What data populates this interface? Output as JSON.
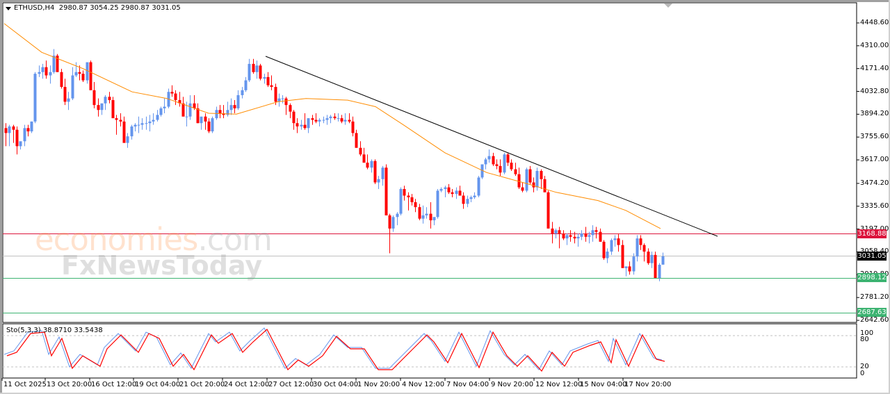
{
  "header": {
    "symbol": "ETHUSD,H4",
    "ohlc": "2980.87 3054.25 2980.87 3031.05",
    "title_line": "ETHUSD,H4  2980.87 3054.25 2980.87 3031.05"
  },
  "indicator": {
    "label": "Sto(5,3,3) 38.8710 33.5438",
    "levels": [
      "100",
      "80",
      "20",
      "0"
    ]
  },
  "watermark": {
    "line1_main": "economies",
    "line1_suffix": ".com",
    "line2": "FxNewsToday"
  },
  "price_axis": [
    "4448.60",
    "4310.00",
    "4171.40",
    "4032.80",
    "3894.20",
    "3755.60",
    "3617.00",
    "3474.20",
    "3335.60",
    "3197.00",
    "3058.40",
    "2919.80",
    "2781.20",
    "2642.60"
  ],
  "price_tags": {
    "resistance": {
      "value": "3168.88",
      "color": "#dc143c"
    },
    "current": {
      "value": "3031.05",
      "color": "#000000"
    },
    "support1": {
      "value": "2898.12",
      "color": "#3cb371"
    },
    "support2": {
      "value": "2687.63",
      "color": "#3cb371"
    }
  },
  "time_axis": [
    "11 Oct 2025",
    "13 Oct 20:00",
    "16 Oct 12:00",
    "19 Oct 04:00",
    "21 Oct 20:00",
    "24 Oct 12:00",
    "27 Oct 12:00",
    "30 Oct 04:00",
    "1 Nov 20:00",
    "4 Nov 12:00",
    "7 Nov 04:00",
    "9 Nov 20:00",
    "12 Nov 12:00",
    "15 Nov 04:00",
    "17 Nov 20:00"
  ],
  "colors": {
    "bull": "#6495ed",
    "bear": "#ff0000",
    "ma": "#ff8c00",
    "trendline": "#000000",
    "resistance": "#dc143c",
    "support": "#3cb371",
    "current": "#c0c0c0",
    "sto_main": "#6495ed",
    "sto_signal": "#ff0000"
  },
  "chart_data": {
    "type": "candlestick",
    "title": "ETHUSD,H4",
    "ylim": [
      2642.6,
      4448.6
    ],
    "yticks": [
      4448.6,
      4310.0,
      4171.4,
      4032.8,
      3894.2,
      3755.6,
      3617.0,
      3474.2,
      3335.6,
      3197.0,
      3058.4,
      2919.8,
      2781.2,
      2642.6
    ],
    "xticks": [
      "11 Oct 2025",
      "13 Oct 20:00",
      "16 Oct 12:00",
      "19 Oct 04:00",
      "21 Oct 20:00",
      "24 Oct 12:00",
      "27 Oct 12:00",
      "30 Oct 04:00",
      "1 Nov 20:00",
      "4 Nov 12:00",
      "7 Nov 04:00",
      "9 Nov 20:00",
      "12 Nov 12:00",
      "15 Nov 04:00",
      "17 Nov 20:00"
    ],
    "last_bar": {
      "open": 2980.87,
      "high": 3054.25,
      "low": 2980.87,
      "close": 3031.05
    },
    "horizontal_lines": [
      {
        "name": "resistance",
        "value": 3168.88
      },
      {
        "name": "current",
        "value": 3031.05
      },
      {
        "name": "support",
        "value": 2898.12
      },
      {
        "name": "support",
        "value": 2687.63
      }
    ],
    "trendline": {
      "from": {
        "x": "27 Oct 00:00",
        "y": 4230
      },
      "to": {
        "x": "~20 Nov",
        "y": 3165
      }
    },
    "moving_average_approx": [
      [
        6,
        4445
      ],
      [
        60,
        4270
      ],
      [
        120,
        4170
      ],
      [
        190,
        4030
      ],
      [
        240,
        3990
      ],
      [
        300,
        3900
      ],
      [
        340,
        3895
      ],
      [
        400,
        3970
      ],
      [
        440,
        3990
      ],
      [
        500,
        3980
      ],
      [
        540,
        3940
      ],
      [
        580,
        3830
      ],
      [
        640,
        3660
      ],
      [
        700,
        3540
      ],
      [
        760,
        3470
      ],
      [
        800,
        3420
      ],
      [
        860,
        3370
      ],
      [
        900,
        3310
      ],
      [
        950,
        3200
      ]
    ],
    "candles_note": "OHLC arrays in 'candles' as [open,high,low,close], estimated from pixels",
    "candles": [
      [
        3810,
        3840,
        3700,
        3780
      ],
      [
        3780,
        3830,
        3700,
        3820
      ],
      [
        3820,
        3830,
        3720,
        3800
      ],
      [
        3800,
        3820,
        3650,
        3700
      ],
      [
        3700,
        3720,
        3680,
        3730
      ],
      [
        3730,
        3830,
        3700,
        3810
      ],
      [
        3810,
        3830,
        3760,
        3790
      ],
      [
        3790,
        3850,
        3780,
        3850
      ],
      [
        3850,
        4150,
        3840,
        4140
      ],
      [
        4140,
        4190,
        4120,
        4150
      ],
      [
        4150,
        4200,
        4110,
        4180
      ],
      [
        4180,
        4220,
        4110,
        4130
      ],
      [
        4130,
        4190,
        4080,
        4150
      ],
      [
        4150,
        4290,
        4140,
        4250
      ],
      [
        4250,
        4260,
        4160,
        4150
      ],
      [
        4150,
        4170,
        4050,
        4060
      ],
      [
        4060,
        4110,
        3950,
        3970
      ],
      [
        3970,
        4030,
        3920,
        3990
      ],
      [
        3990,
        4180,
        3980,
        4130
      ],
      [
        4130,
        4210,
        4120,
        4150
      ],
      [
        4150,
        4190,
        4100,
        4140
      ],
      [
        4140,
        4160,
        4090,
        4100
      ],
      [
        4100,
        4200,
        4080,
        4210
      ],
      [
        4210,
        4220,
        4050,
        4040
      ],
      [
        4040,
        4090,
        3930,
        3950
      ],
      [
        3950,
        3990,
        3880,
        3920
      ],
      [
        3920,
        3960,
        3890,
        3960
      ],
      [
        3960,
        4010,
        3920,
        4000
      ],
      [
        4000,
        4030,
        3960,
        3980
      ],
      [
        3980,
        4000,
        3880,
        3870
      ],
      [
        3870,
        3890,
        3770,
        3860
      ],
      [
        3860,
        3900,
        3820,
        3850
      ],
      [
        3850,
        3880,
        3750,
        3720
      ],
      [
        3720,
        3780,
        3690,
        3760
      ],
      [
        3760,
        3830,
        3740,
        3820
      ],
      [
        3820,
        3840,
        3790,
        3830
      ],
      [
        3830,
        3880,
        3780,
        3830
      ],
      [
        3830,
        3870,
        3800,
        3840
      ],
      [
        3840,
        3880,
        3800,
        3840
      ],
      [
        3840,
        3890,
        3790,
        3850
      ],
      [
        3850,
        3900,
        3830,
        3860
      ],
      [
        3860,
        3920,
        3850,
        3890
      ],
      [
        3890,
        3940,
        3880,
        3930
      ],
      [
        3930,
        3990,
        3900,
        3940
      ],
      [
        3940,
        4050,
        3930,
        4030
      ],
      [
        4030,
        4070,
        4000,
        4020
      ],
      [
        4020,
        4040,
        3950,
        3980
      ],
      [
        3980,
        4030,
        3940,
        3960
      ],
      [
        3960,
        4000,
        3920,
        3880
      ],
      [
        3880,
        3970,
        3820,
        3880
      ],
      [
        3880,
        4010,
        3860,
        3960
      ],
      [
        3960,
        4010,
        3920,
        3930
      ],
      [
        3930,
        3960,
        3840,
        3840
      ],
      [
        3840,
        3870,
        3800,
        3880
      ],
      [
        3880,
        3900,
        3800,
        3850
      ],
      [
        3850,
        3870,
        3780,
        3790
      ],
      [
        3790,
        3880,
        3780,
        3870
      ],
      [
        3870,
        3940,
        3860,
        3920
      ],
      [
        3920,
        3950,
        3870,
        3900
      ],
      [
        3900,
        3950,
        3870,
        3890
      ],
      [
        3890,
        3970,
        3880,
        3920
      ],
      [
        3920,
        3990,
        3890,
        3950
      ],
      [
        3950,
        3980,
        3900,
        3930
      ],
      [
        3930,
        4040,
        3920,
        4010
      ],
      [
        4010,
        4060,
        3990,
        4040
      ],
      [
        4040,
        4120,
        4030,
        4100
      ],
      [
        4100,
        4230,
        4090,
        4200
      ],
      [
        4200,
        4230,
        4140,
        4150
      ],
      [
        4150,
        4220,
        4110,
        4190
      ],
      [
        4190,
        4200,
        4100,
        4110
      ],
      [
        4110,
        4140,
        4080,
        4120
      ],
      [
        4120,
        4150,
        4060,
        4070
      ],
      [
        4070,
        4130,
        4040,
        4060
      ],
      [
        4060,
        4080,
        3950,
        3970
      ],
      [
        3970,
        4020,
        3940,
        3990
      ],
      [
        3990,
        4010,
        3960,
        3990
      ],
      [
        3990,
        4000,
        3890,
        3950
      ],
      [
        3950,
        3960,
        3870,
        3910
      ],
      [
        3910,
        3920,
        3800,
        3840
      ],
      [
        3840,
        3870,
        3780,
        3820
      ],
      [
        3820,
        3860,
        3800,
        3830
      ],
      [
        3830,
        3900,
        3800,
        3810
      ],
      [
        3810,
        3870,
        3780,
        3870
      ],
      [
        3870,
        3890,
        3830,
        3860
      ],
      [
        3860,
        3900,
        3840,
        3850
      ],
      [
        3850,
        3870,
        3820,
        3860
      ],
      [
        3860,
        3880,
        3840,
        3860
      ],
      [
        3860,
        3890,
        3830,
        3870
      ],
      [
        3870,
        3890,
        3840,
        3880
      ],
      [
        3880,
        3900,
        3860,
        3870
      ],
      [
        3870,
        3900,
        3850,
        3870
      ],
      [
        3870,
        3890,
        3840,
        3850
      ],
      [
        3850,
        3900,
        3830,
        3860
      ],
      [
        3860,
        3900,
        3840,
        3850
      ],
      [
        3850,
        3880,
        3760,
        3780
      ],
      [
        3780,
        3800,
        3700,
        3690
      ],
      [
        3690,
        3730,
        3640,
        3650
      ],
      [
        3650,
        3690,
        3600,
        3600
      ],
      [
        3600,
        3650,
        3560,
        3570
      ],
      [
        3570,
        3620,
        3540,
        3610
      ],
      [
        3610,
        3620,
        3470,
        3480
      ],
      [
        3480,
        3520,
        3440,
        3500
      ],
      [
        3500,
        3580,
        3460,
        3570
      ],
      [
        3570,
        3590,
        3280,
        3280
      ],
      [
        3280,
        3290,
        3050,
        3200
      ],
      [
        3200,
        3280,
        3180,
        3270
      ],
      [
        3270,
        3300,
        3220,
        3290
      ],
      [
        3290,
        3450,
        3280,
        3440
      ],
      [
        3440,
        3460,
        3370,
        3400
      ],
      [
        3400,
        3420,
        3310,
        3390
      ],
      [
        3390,
        3410,
        3340,
        3360
      ],
      [
        3360,
        3380,
        3300,
        3330
      ],
      [
        3330,
        3350,
        3250,
        3260
      ],
      [
        3260,
        3340,
        3230,
        3280
      ],
      [
        3280,
        3330,
        3260,
        3290
      ],
      [
        3290,
        3360,
        3200,
        3250
      ],
      [
        3250,
        3270,
        3220,
        3270
      ],
      [
        3270,
        3440,
        3260,
        3430
      ],
      [
        3430,
        3450,
        3420,
        3440
      ],
      [
        3440,
        3460,
        3390,
        3450
      ],
      [
        3450,
        3470,
        3410,
        3420
      ],
      [
        3420,
        3440,
        3390,
        3410
      ],
      [
        3410,
        3450,
        3380,
        3430
      ],
      [
        3430,
        3460,
        3400,
        3400
      ],
      [
        3400,
        3420,
        3320,
        3350
      ],
      [
        3350,
        3400,
        3330,
        3380
      ],
      [
        3380,
        3400,
        3360,
        3390
      ],
      [
        3390,
        3420,
        3380,
        3400
      ],
      [
        3400,
        3520,
        3390,
        3510
      ],
      [
        3510,
        3580,
        3500,
        3590
      ],
      [
        3590,
        3630,
        3560,
        3620
      ],
      [
        3620,
        3680,
        3600,
        3640
      ],
      [
        3640,
        3660,
        3580,
        3590
      ],
      [
        3590,
        3620,
        3560,
        3580
      ],
      [
        3580,
        3620,
        3520,
        3540
      ],
      [
        3540,
        3660,
        3530,
        3650
      ],
      [
        3650,
        3660,
        3580,
        3600
      ],
      [
        3600,
        3620,
        3550,
        3560
      ],
      [
        3560,
        3600,
        3520,
        3530
      ],
      [
        3530,
        3570,
        3440,
        3450
      ],
      [
        3450,
        3480,
        3420,
        3430
      ],
      [
        3430,
        3570,
        3420,
        3560
      ],
      [
        3560,
        3580,
        3470,
        3480
      ],
      [
        3480,
        3510,
        3420,
        3450
      ],
      [
        3450,
        3570,
        3430,
        3550
      ],
      [
        3550,
        3560,
        3440,
        3500
      ],
      [
        3500,
        3520,
        3440,
        3420
      ],
      [
        3420,
        3430,
        3210,
        3200
      ],
      [
        3200,
        3240,
        3110,
        3170
      ],
      [
        3170,
        3200,
        3140,
        3190
      ],
      [
        3190,
        3210,
        3080,
        3170
      ],
      [
        3170,
        3190,
        3130,
        3140
      ],
      [
        3140,
        3170,
        3100,
        3160
      ],
      [
        3160,
        3190,
        3120,
        3150
      ],
      [
        3150,
        3180,
        3110,
        3140
      ],
      [
        3140,
        3170,
        3090,
        3150
      ],
      [
        3150,
        3190,
        3130,
        3170
      ],
      [
        3170,
        3210,
        3120,
        3150
      ],
      [
        3150,
        3180,
        3110,
        3160
      ],
      [
        3160,
        3220,
        3120,
        3190
      ],
      [
        3190,
        3210,
        3140,
        3180
      ],
      [
        3180,
        3200,
        3120,
        3120
      ],
      [
        3120,
        3130,
        3010,
        3020
      ],
      [
        3020,
        3080,
        2990,
        3060
      ],
      [
        3060,
        3140,
        3040,
        3130
      ],
      [
        3130,
        3160,
        3090,
        3140
      ],
      [
        3140,
        3170,
        3060,
        3100
      ],
      [
        3100,
        3130,
        2990,
        2960
      ],
      [
        2960,
        2970,
        2910,
        2970
      ],
      [
        2970,
        3000,
        2920,
        2940
      ],
      [
        2940,
        3050,
        2920,
        3030
      ],
      [
        3030,
        3160,
        3000,
        3140
      ],
      [
        3140,
        3160,
        3070,
        3100
      ],
      [
        3100,
        3110,
        3000,
        3060
      ],
      [
        3060,
        3080,
        2980,
        2990
      ],
      [
        2990,
        3060,
        2960,
        3040
      ],
      [
        3040,
        3060,
        2980,
        2900
      ],
      [
        2900,
        2990,
        2880,
        2980
      ],
      [
        2980.87,
        3054.25,
        2980.87,
        3031.05
      ]
    ],
    "sto_main_approx": "oscillating 10-95",
    "sto_values": {
      "main": 38.871,
      "signal": 33.5438
    }
  }
}
